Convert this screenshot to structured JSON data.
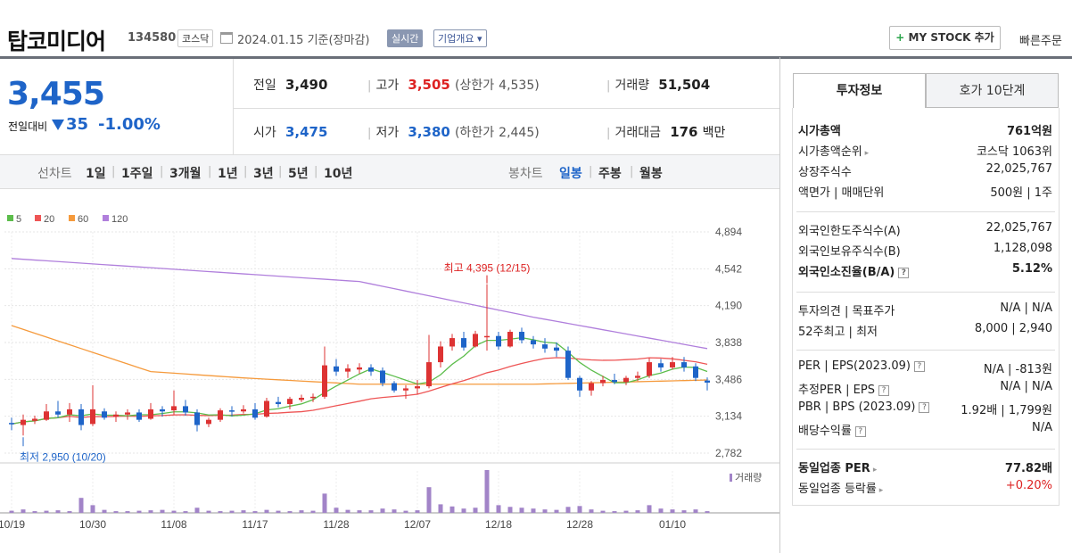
{
  "header": {
    "title": "탑코미디어",
    "code": "134580",
    "market": "코스닥",
    "base_date": "2024.01.15 기준(장마감)",
    "realtime": "실시간",
    "overview": "기업개요",
    "overview_arrow": "▾",
    "mystock": "MY STOCK 추가",
    "mystock_icon": "+",
    "quick_order": "빠른주문"
  },
  "price": {
    "current": "3,455",
    "change_label": "전일대비",
    "change_value": "35",
    "change_pct": "-1.00%",
    "direction_icon": "down-triangle-icon"
  },
  "quote": {
    "prev_close": {
      "label": "전일",
      "value": "3,490"
    },
    "high": {
      "label": "고가",
      "value": "3,505",
      "upper_label": "(상한가",
      "upper_value": "4,535)"
    },
    "volume": {
      "label": "거래량",
      "value": "51,504"
    },
    "open": {
      "label": "시가",
      "value": "3,475"
    },
    "low": {
      "label": "저가",
      "value": "3,380",
      "lower_label": "(하한가",
      "lower_value": "2,445)"
    },
    "amount": {
      "label": "거래대금",
      "value": "176",
      "unit": "백만"
    }
  },
  "period_bar": {
    "line_label": "선차트",
    "line_periods": [
      "1일",
      "1주일",
      "3개월",
      "1년",
      "3년",
      "5년",
      "10년"
    ],
    "active_line": "3개월",
    "candle_label": "봉차트",
    "candle_periods": [
      "일봉",
      "주봉",
      "월봉"
    ],
    "active_candle": "일봉"
  },
  "colors": {
    "up": "#dd3333",
    "down": "#1e64c8",
    "ma5": "#5cbd4b",
    "ma20": "#ee5555",
    "ma60": "#f59a3c",
    "ma120": "#b07fdc",
    "volume": "#a284c8"
  },
  "chart_data": {
    "type": "candlestick",
    "legend": [
      {
        "name": "5",
        "color": "#5cbd4b"
      },
      {
        "name": "20",
        "color": "#ee5555"
      },
      {
        "name": "60",
        "color": "#f59a3c"
      },
      {
        "name": "120",
        "color": "#b07fdc"
      }
    ],
    "y_ticks": [
      "4,894",
      "4,542",
      "4,190",
      "3,838",
      "3,486",
      "3,134",
      "2,782"
    ],
    "y_range": [
      2782,
      4894
    ],
    "x_ticks": [
      "10/19",
      "10/30",
      "11/08",
      "11/17",
      "11/28",
      "12/07",
      "12/18",
      "12/28",
      "01/10"
    ],
    "annotations": {
      "high": "최고 4,395 (12/15)",
      "low": "최저 2,950 (10/20)"
    },
    "volume_label": "거래량",
    "candles": [
      {
        "d": "10/19",
        "o": 3070,
        "h": 3120,
        "l": 3000,
        "c": 3060
      },
      {
        "d": "10/20",
        "o": 3050,
        "h": 3150,
        "l": 2950,
        "c": 3100
      },
      {
        "d": "10/23",
        "o": 3090,
        "h": 3140,
        "l": 3060,
        "c": 3110
      },
      {
        "d": "10/24",
        "o": 3100,
        "h": 3250,
        "l": 3090,
        "c": 3180
      },
      {
        "d": "10/25",
        "o": 3180,
        "h": 3280,
        "l": 3120,
        "c": 3150
      },
      {
        "d": "10/26",
        "o": 3150,
        "h": 3260,
        "l": 3080,
        "c": 3200
      },
      {
        "d": "10/27",
        "o": 3200,
        "h": 3250,
        "l": 3000,
        "c": 3050
      },
      {
        "d": "10/30",
        "o": 3060,
        "h": 3430,
        "l": 3040,
        "c": 3200
      },
      {
        "d": "10/31",
        "o": 3180,
        "h": 3210,
        "l": 3100,
        "c": 3120
      },
      {
        "d": "11/01",
        "o": 3130,
        "h": 3180,
        "l": 3080,
        "c": 3150
      },
      {
        "d": "11/02",
        "o": 3150,
        "h": 3200,
        "l": 3100,
        "c": 3170
      },
      {
        "d": "11/03",
        "o": 3170,
        "h": 3200,
        "l": 3080,
        "c": 3100
      },
      {
        "d": "11/06",
        "o": 3110,
        "h": 3260,
        "l": 3100,
        "c": 3200
      },
      {
        "d": "11/07",
        "o": 3200,
        "h": 3230,
        "l": 3130,
        "c": 3180
      },
      {
        "d": "11/08",
        "o": 3190,
        "h": 3380,
        "l": 3150,
        "c": 3230
      },
      {
        "d": "11/09",
        "o": 3230,
        "h": 3290,
        "l": 3140,
        "c": 3170
      },
      {
        "d": "11/10",
        "o": 3170,
        "h": 3200,
        "l": 2990,
        "c": 3050
      },
      {
        "d": "11/13",
        "o": 3060,
        "h": 3120,
        "l": 3030,
        "c": 3100
      },
      {
        "d": "11/14",
        "o": 3100,
        "h": 3210,
        "l": 3080,
        "c": 3190
      },
      {
        "d": "11/15",
        "o": 3190,
        "h": 3230,
        "l": 3130,
        "c": 3180
      },
      {
        "d": "11/16",
        "o": 3180,
        "h": 3240,
        "l": 3160,
        "c": 3200
      },
      {
        "d": "11/17",
        "o": 3200,
        "h": 3260,
        "l": 3100,
        "c": 3120
      },
      {
        "d": "11/20",
        "o": 3130,
        "h": 3310,
        "l": 3120,
        "c": 3280
      },
      {
        "d": "11/21",
        "o": 3270,
        "h": 3320,
        "l": 3220,
        "c": 3250
      },
      {
        "d": "11/22",
        "o": 3250,
        "h": 3320,
        "l": 3200,
        "c": 3300
      },
      {
        "d": "11/23",
        "o": 3290,
        "h": 3340,
        "l": 3270,
        "c": 3310
      },
      {
        "d": "11/24",
        "o": 3310,
        "h": 3350,
        "l": 3270,
        "c": 3320
      },
      {
        "d": "11/27",
        "o": 3320,
        "h": 3800,
        "l": 3300,
        "c": 3620
      },
      {
        "d": "11/28",
        "o": 3610,
        "h": 3680,
        "l": 3520,
        "c": 3560
      },
      {
        "d": "11/29",
        "o": 3560,
        "h": 3630,
        "l": 3500,
        "c": 3590
      },
      {
        "d": "11/30",
        "o": 3580,
        "h": 3640,
        "l": 3540,
        "c": 3600
      },
      {
        "d": "12/01",
        "o": 3600,
        "h": 3630,
        "l": 3520,
        "c": 3560
      },
      {
        "d": "12/04",
        "o": 3570,
        "h": 3600,
        "l": 3420,
        "c": 3450
      },
      {
        "d": "12/05",
        "o": 3450,
        "h": 3470,
        "l": 3360,
        "c": 3380
      },
      {
        "d": "12/06",
        "o": 3380,
        "h": 3430,
        "l": 3300,
        "c": 3400
      },
      {
        "d": "12/07",
        "o": 3400,
        "h": 3480,
        "l": 3340,
        "c": 3420
      },
      {
        "d": "12/08",
        "o": 3420,
        "h": 3910,
        "l": 3400,
        "c": 3650
      },
      {
        "d": "12/11",
        "o": 3650,
        "h": 3850,
        "l": 3600,
        "c": 3800
      },
      {
        "d": "12/12",
        "o": 3800,
        "h": 3920,
        "l": 3760,
        "c": 3880
      },
      {
        "d": "12/13",
        "o": 3880,
        "h": 3940,
        "l": 3760,
        "c": 3790
      },
      {
        "d": "12/14",
        "o": 3800,
        "h": 3950,
        "l": 3790,
        "c": 3920
      },
      {
        "d": "12/15",
        "o": 3900,
        "h": 4395,
        "l": 3760,
        "c": 3900
      },
      {
        "d": "12/18",
        "o": 3900,
        "h": 3940,
        "l": 3770,
        "c": 3800
      },
      {
        "d": "12/19",
        "o": 3800,
        "h": 3960,
        "l": 3790,
        "c": 3940
      },
      {
        "d": "12/20",
        "o": 3940,
        "h": 3980,
        "l": 3830,
        "c": 3860
      },
      {
        "d": "12/21",
        "o": 3860,
        "h": 3900,
        "l": 3780,
        "c": 3820
      },
      {
        "d": "12/22",
        "o": 3820,
        "h": 3880,
        "l": 3740,
        "c": 3780
      },
      {
        "d": "12/26",
        "o": 3790,
        "h": 3840,
        "l": 3700,
        "c": 3760
      },
      {
        "d": "12/27",
        "o": 3760,
        "h": 3800,
        "l": 3480,
        "c": 3500
      },
      {
        "d": "12/28",
        "o": 3500,
        "h": 3520,
        "l": 3320,
        "c": 3380
      },
      {
        "d": "12/29",
        "o": 3380,
        "h": 3470,
        "l": 3330,
        "c": 3450
      },
      {
        "d": "01/02",
        "o": 3450,
        "h": 3520,
        "l": 3420,
        "c": 3480
      },
      {
        "d": "01/03",
        "o": 3480,
        "h": 3540,
        "l": 3440,
        "c": 3460
      },
      {
        "d": "01/04",
        "o": 3460,
        "h": 3520,
        "l": 3430,
        "c": 3500
      },
      {
        "d": "01/05",
        "o": 3500,
        "h": 3560,
        "l": 3470,
        "c": 3520
      },
      {
        "d": "01/08",
        "o": 3520,
        "h": 3690,
        "l": 3500,
        "c": 3650
      },
      {
        "d": "01/09",
        "o": 3640,
        "h": 3680,
        "l": 3560,
        "c": 3600
      },
      {
        "d": "01/10",
        "o": 3600,
        "h": 3700,
        "l": 3580,
        "c": 3650
      },
      {
        "d": "01/11",
        "o": 3650,
        "h": 3700,
        "l": 3560,
        "c": 3600
      },
      {
        "d": "01/12",
        "o": 3610,
        "h": 3640,
        "l": 3470,
        "c": 3500
      },
      {
        "d": "01/15",
        "o": 3475,
        "h": 3505,
        "l": 3380,
        "c": 3455
      }
    ],
    "ma120_points": [
      [
        0,
        4640
      ],
      [
        30,
        4420
      ],
      [
        45,
        4080
      ],
      [
        60,
        3780
      ]
    ],
    "ma60_points": [
      [
        0,
        4000
      ],
      [
        12,
        3560
      ],
      [
        20,
        3500
      ],
      [
        30,
        3440
      ],
      [
        45,
        3440
      ],
      [
        60,
        3480
      ]
    ],
    "volume_rel": [
      0.05,
      0.08,
      0.04,
      0.05,
      0.06,
      0.04,
      0.35,
      0.18,
      0.07,
      0.04,
      0.04,
      0.05,
      0.06,
      0.07,
      0.05,
      0.04,
      0.12,
      0.05,
      0.04,
      0.05,
      0.06,
      0.04,
      0.07,
      0.05,
      0.04,
      0.06,
      0.05,
      0.45,
      0.12,
      0.07,
      0.06,
      0.06,
      0.1,
      0.08,
      0.05,
      0.06,
      0.6,
      0.2,
      0.15,
      0.1,
      0.12,
      1.0,
      0.18,
      0.14,
      0.12,
      0.1,
      0.08,
      0.07,
      0.14,
      0.16,
      0.08,
      0.05,
      0.04,
      0.05,
      0.06,
      0.18,
      0.1,
      0.08,
      0.06,
      0.08,
      0.04
    ]
  },
  "right_panel": {
    "tabs": [
      "투자정보",
      "호가 10단계"
    ],
    "rows1": [
      {
        "label": "시가총액",
        "value": "761억원",
        "bold": true
      },
      {
        "label": "시가총액순위",
        "value": "코스닥 1063위",
        "arrow": true
      },
      {
        "label": "상장주식수",
        "value": "22,025,767"
      },
      {
        "label": "액면가 | 매매단위",
        "value": "500원 | 1주"
      }
    ],
    "rows2": [
      {
        "label": "외국인한도주식수(A)",
        "value": "22,025,767"
      },
      {
        "label": "외국인보유주식수(B)",
        "value": "1,128,098"
      },
      {
        "label": "외국인소진율(B/A)",
        "value": "5.12%",
        "bold": true,
        "help": true
      }
    ],
    "rows3": [
      {
        "label": "투자의견 | 목표주가",
        "value": "N/A | N/A"
      },
      {
        "label": "52주최고 | 최저",
        "value": "8,000 | 2,940"
      }
    ],
    "rows4": [
      {
        "label": "PER | EPS(2023.09)",
        "value": "N/A | -813원",
        "help": true
      },
      {
        "label": "추정PER | EPS",
        "value": "N/A | N/A",
        "help": true
      },
      {
        "label": "PBR | BPS (2023.09)",
        "value": "1.92배 | 1,799원",
        "help": true
      },
      {
        "label": "배당수익률",
        "value": "N/A",
        "help": true
      }
    ],
    "rows5": [
      {
        "label": "동일업종 PER",
        "value": "77.82배",
        "bold": true,
        "arrow": true
      },
      {
        "label": "동일업종 등락률",
        "value": "+0.20%",
        "arrow": true,
        "red": true
      }
    ]
  }
}
